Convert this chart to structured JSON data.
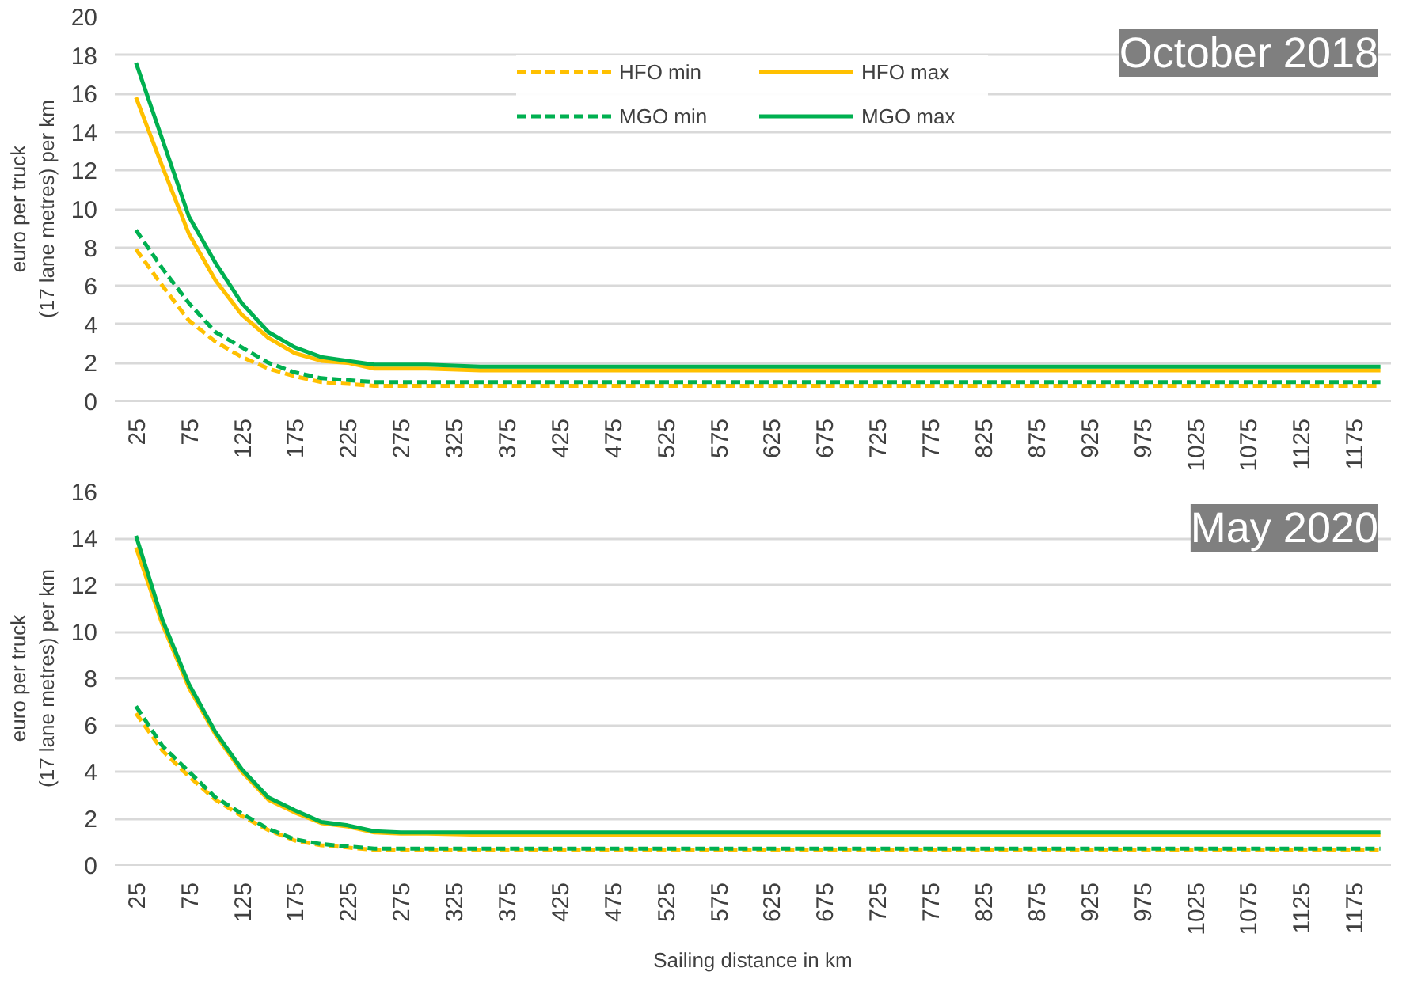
{
  "chart_data": [
    {
      "type": "line",
      "annotations": [
        "October 2018"
      ],
      "ylabel": "euro per truck\n(17 lane metres) per km",
      "x": [
        25,
        50,
        75,
        100,
        125,
        150,
        175,
        200,
        225,
        250,
        275,
        300,
        350,
        400,
        450,
        500,
        550,
        600,
        650,
        700,
        750,
        800,
        850,
        900,
        950,
        1000,
        1050,
        1100,
        1150,
        1200
      ],
      "xlim": [
        5,
        1210
      ],
      "xticks": [
        25,
        75,
        125,
        175,
        225,
        275,
        325,
        375,
        425,
        475,
        525,
        575,
        625,
        675,
        725,
        775,
        825,
        875,
        925,
        975,
        1025,
        1075,
        1125,
        1175
      ],
      "ylim": [
        0,
        20
      ],
      "yticks": [
        0,
        2,
        4,
        6,
        8,
        10,
        12,
        14,
        16,
        18,
        20
      ],
      "grid": "y",
      "legend": "top",
      "marker": "none",
      "series": [
        {
          "name": "HFO min",
          "color": "#ffc000",
          "line_style": "dashed",
          "values": [
            7.9,
            6.0,
            4.2,
            3.1,
            2.3,
            1.7,
            1.3,
            1.0,
            0.9,
            0.8,
            0.8,
            0.8,
            0.8,
            0.8,
            0.8,
            0.8,
            0.8,
            0.8,
            0.8,
            0.8,
            0.8,
            0.8,
            0.8,
            0.8,
            0.8,
            0.8,
            0.8,
            0.8,
            0.8,
            0.8
          ]
        },
        {
          "name": "HFO max",
          "color": "#ffc000",
          "line_style": "solid",
          "values": [
            15.8,
            12.2,
            8.7,
            6.3,
            4.5,
            3.3,
            2.5,
            2.1,
            2.0,
            1.7,
            1.7,
            1.7,
            1.6,
            1.6,
            1.6,
            1.6,
            1.6,
            1.6,
            1.6,
            1.6,
            1.6,
            1.6,
            1.6,
            1.6,
            1.6,
            1.6,
            1.6,
            1.6,
            1.6,
            1.6
          ]
        },
        {
          "name": "MGO min",
          "color": "#00b050",
          "line_style": "dashed",
          "values": [
            8.9,
            6.9,
            5.1,
            3.6,
            2.8,
            2.0,
            1.5,
            1.2,
            1.1,
            1.0,
            1.0,
            1.0,
            1.0,
            1.0,
            1.0,
            1.0,
            1.0,
            1.0,
            1.0,
            1.0,
            1.0,
            1.0,
            1.0,
            1.0,
            1.0,
            1.0,
            1.0,
            1.0,
            1.0,
            1.0
          ]
        },
        {
          "name": "MGO max",
          "color": "#00b050",
          "line_style": "solid",
          "values": [
            17.6,
            13.6,
            9.6,
            7.2,
            5.1,
            3.6,
            2.8,
            2.3,
            2.1,
            1.9,
            1.9,
            1.9,
            1.8,
            1.8,
            1.8,
            1.8,
            1.8,
            1.8,
            1.8,
            1.8,
            1.8,
            1.8,
            1.8,
            1.8,
            1.8,
            1.8,
            1.8,
            1.8,
            1.8,
            1.8
          ]
        }
      ]
    },
    {
      "type": "line",
      "annotations": [
        "May 2020"
      ],
      "ylabel": "euro per truck\n(17 lane metres) per km",
      "xlabel": "Sailing distance in km",
      "x": [
        25,
        50,
        75,
        100,
        125,
        150,
        175,
        200,
        225,
        250,
        275,
        300,
        350,
        400,
        450,
        500,
        550,
        600,
        650,
        700,
        750,
        800,
        850,
        900,
        950,
        1000,
        1050,
        1100,
        1150,
        1200
      ],
      "xlim": [
        5,
        1210
      ],
      "xticks": [
        25,
        75,
        125,
        175,
        225,
        275,
        325,
        375,
        425,
        475,
        525,
        575,
        625,
        675,
        725,
        775,
        825,
        875,
        925,
        975,
        1025,
        1075,
        1125,
        1175
      ],
      "ylim": [
        0,
        16
      ],
      "yticks": [
        0,
        2,
        4,
        6,
        8,
        10,
        12,
        14,
        16
      ],
      "grid": "y",
      "legend": false,
      "marker": "none",
      "series": [
        {
          "color": "#ffc000",
          "line_style": "dashed",
          "values": [
            6.5,
            4.9,
            3.8,
            2.8,
            2.1,
            1.5,
            1.05,
            0.85,
            0.75,
            0.65,
            0.65,
            0.65,
            0.65,
            0.65,
            0.65,
            0.65,
            0.65,
            0.65,
            0.65,
            0.65,
            0.65,
            0.65,
            0.65,
            0.65,
            0.65,
            0.65,
            0.65,
            0.65,
            0.65,
            0.65
          ]
        },
        {
          "color": "#ffc000",
          "line_style": "solid",
          "values": [
            13.6,
            10.3,
            7.6,
            5.6,
            4.0,
            2.8,
            2.25,
            1.8,
            1.65,
            1.4,
            1.35,
            1.35,
            1.3,
            1.3,
            1.3,
            1.3,
            1.3,
            1.3,
            1.3,
            1.3,
            1.3,
            1.3,
            1.3,
            1.3,
            1.3,
            1.3,
            1.3,
            1.3,
            1.3,
            1.3
          ]
        },
        {
          "color": "#00b050",
          "line_style": "dashed",
          "values": [
            6.8,
            5.1,
            4.0,
            2.9,
            2.2,
            1.55,
            1.1,
            0.9,
            0.8,
            0.7,
            0.7,
            0.7,
            0.7,
            0.7,
            0.7,
            0.7,
            0.7,
            0.7,
            0.7,
            0.7,
            0.7,
            0.7,
            0.7,
            0.7,
            0.7,
            0.7,
            0.7,
            0.7,
            0.7,
            0.7
          ]
        },
        {
          "color": "#00b050",
          "line_style": "solid",
          "values": [
            14.1,
            10.5,
            7.75,
            5.7,
            4.1,
            2.9,
            2.35,
            1.85,
            1.7,
            1.45,
            1.4,
            1.4,
            1.4,
            1.4,
            1.4,
            1.4,
            1.4,
            1.4,
            1.4,
            1.4,
            1.4,
            1.4,
            1.4,
            1.4,
            1.4,
            1.4,
            1.4,
            1.4,
            1.4,
            1.4
          ]
        }
      ]
    }
  ]
}
